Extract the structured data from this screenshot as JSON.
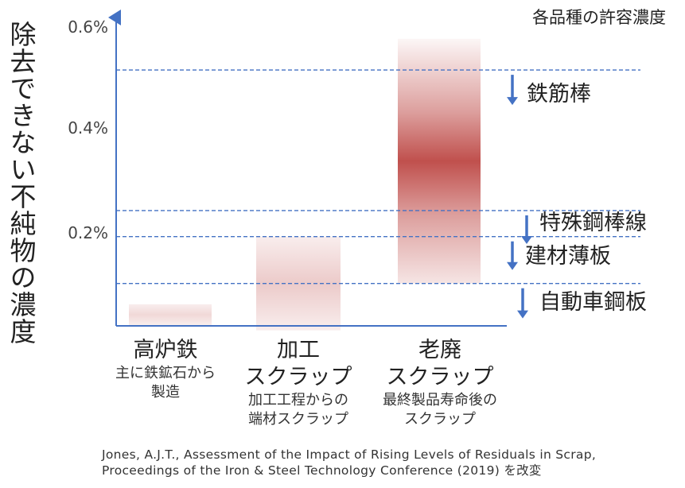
{
  "chart_data": {
    "type": "bar",
    "title": "",
    "ylabel": "除去できない不純物の濃度",
    "ylim": [
      0,
      0.6
    ],
    "y_unit": "%",
    "y_ticks": [
      {
        "value": 0.2,
        "label": "0.2%"
      },
      {
        "value": 0.4,
        "label": "0.4%"
      },
      {
        "value": 0.6,
        "label": "0.6%"
      }
    ],
    "categories": [
      {
        "name": "高炉鉄",
        "subtitle": "主に鉄鉱石から製造",
        "low": 0.03,
        "high": 0.07,
        "peak": 0.05
      },
      {
        "name": "加工スクラップ",
        "subtitle": "加工工程からの端材スクラップ",
        "low": 0.02,
        "high": 0.2,
        "peak": 0.11
      },
      {
        "name": "老廃スクラップ",
        "subtitle": "最終製品寿命後のスクラップ",
        "low": 0.11,
        "high": 0.58,
        "peak": 0.33
      }
    ],
    "thresholds_title": "各品種の許容濃度",
    "thresholds": [
      {
        "label": "鉄筋棒",
        "value": 0.52
      },
      {
        "label": "特殊鋼棒線",
        "value": 0.25
      },
      {
        "label": "建材薄板",
        "value": 0.2
      },
      {
        "label": "自動車鋼板",
        "value": 0.11
      }
    ],
    "colors": {
      "bar": "#c0504d",
      "threshold": "#4472c4",
      "axis": "#4472c4"
    }
  },
  "labels": {
    "legend_title": "各品種の許容濃度",
    "ylabel": "除去できない不純物の濃度",
    "tick_06": "0.6%",
    "tick_04": "0.4%",
    "tick_02": "0.2%",
    "cat1_main": "高炉鉄",
    "cat1_sub_1": "主に鉄鉱石から",
    "cat1_sub_2": "製造",
    "cat2_main_1": "加工",
    "cat2_main_2": "スクラップ",
    "cat2_sub_1": "加工工程からの",
    "cat2_sub_2": "端材スクラップ",
    "cat3_main_1": "老廃",
    "cat3_main_2": "スクラップ",
    "cat3_sub_1": "最終製品寿命後の",
    "cat3_sub_2": "スクラップ",
    "grade_1": "鉄筋棒",
    "grade_2": "特殊鋼棒線",
    "grade_3": "建材薄板",
    "grade_4": "自動車鋼板",
    "source_1": "Jones, A.J.T., Assessment of the Impact of Rising Levels of Residuals in Scrap,",
    "source_2": "Proceedings of the Iron & Steel Technology Conference (2019) を改変"
  }
}
